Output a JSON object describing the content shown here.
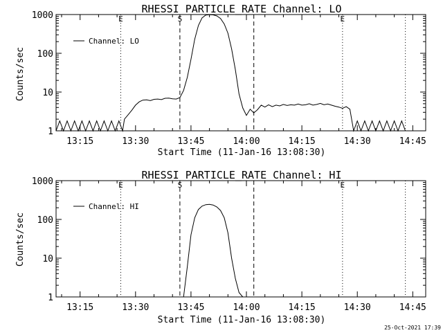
{
  "footer": {
    "timestamp": "25-Oct-2021 17:39"
  },
  "chart_data": [
    {
      "type": "line",
      "title": "RHESSI PARTICLE_RATE Channel: LO",
      "xlabel": "Start Time (11-Jan-16 13:08:30)",
      "ylabel": "Counts/sec",
      "y_scale": "log",
      "ylim": [
        1,
        1000
      ],
      "xlim": [
        "13:08:30",
        "14:48:30"
      ],
      "x_ticks": [
        "13:15",
        "13:30",
        "13:45",
        "14:00",
        "14:15",
        "14:30",
        "14:45"
      ],
      "y_ticks": [
        "1",
        "10",
        "100",
        "1000"
      ],
      "markers": [
        {
          "time": "13:26:00",
          "label": "E",
          "style": "dotted"
        },
        {
          "time": "13:42:00",
          "label": "S",
          "style": "dashed"
        },
        {
          "time": "14:02:00",
          "label": "",
          "style": "dashed"
        },
        {
          "time": "14:26:00",
          "label": "E",
          "style": "dotted"
        },
        {
          "time": "14:43:00",
          "label": "",
          "style": "dotted"
        }
      ],
      "legend": {
        "placement": "top-left"
      },
      "series": [
        {
          "name": "Channel: LO",
          "x": [
            "13:08:30",
            "13:09:30",
            "13:10:30",
            "13:11:30",
            "13:12:30",
            "13:13:30",
            "13:14:30",
            "13:15:30",
            "13:16:30",
            "13:17:30",
            "13:18:30",
            "13:19:30",
            "13:20:30",
            "13:21:30",
            "13:22:30",
            "13:23:30",
            "13:24:30",
            "13:25:30",
            "13:26:30",
            "13:27:00",
            "13:28:00",
            "13:29:00",
            "13:30:00",
            "13:31:00",
            "13:32:00",
            "13:33:00",
            "13:34:00",
            "13:35:00",
            "13:36:00",
            "13:37:00",
            "13:38:00",
            "13:39:00",
            "13:40:00",
            "13:41:00",
            "13:42:00",
            "13:43:00",
            "13:44:00",
            "13:45:00",
            "13:46:00",
            "13:47:00",
            "13:48:00",
            "13:49:00",
            "13:50:00",
            "13:51:00",
            "13:52:00",
            "13:53:00",
            "13:54:00",
            "13:55:00",
            "13:56:00",
            "13:57:00",
            "13:58:00",
            "13:59:00",
            "14:00:00",
            "14:01:00",
            "14:02:00",
            "14:03:00",
            "14:04:00",
            "14:05:00",
            "14:06:00",
            "14:07:00",
            "14:08:00",
            "14:09:00",
            "14:10:00",
            "14:11:00",
            "14:12:00",
            "14:13:00",
            "14:14:00",
            "14:15:00",
            "14:16:00",
            "14:17:00",
            "14:18:00",
            "14:19:00",
            "14:20:00",
            "14:21:00",
            "14:22:00",
            "14:23:00",
            "14:24:00",
            "14:25:00",
            "14:26:00",
            "14:27:00",
            "14:28:00",
            "14:29:00",
            "14:30:00",
            "14:31:00",
            "14:32:00",
            "14:33:00",
            "14:34:00",
            "14:35:00",
            "14:36:00",
            "14:37:00",
            "14:38:00",
            "14:39:00",
            "14:40:00",
            "14:41:00",
            "14:42:00",
            "14:43:00",
            "14:44:00"
          ],
          "y": [
            1,
            1.8,
            1,
            1.8,
            1,
            1.8,
            1,
            1.8,
            1,
            1.8,
            1,
            1.8,
            1,
            1.8,
            1,
            1.8,
            1,
            1.8,
            1,
            2,
            2.6,
            3.4,
            4.6,
            5.6,
            6.2,
            6.3,
            6.0,
            6.5,
            6.6,
            6.4,
            6.9,
            7.0,
            6.7,
            6.6,
            7.2,
            11,
            24,
            70,
            230,
            520,
            820,
            970,
            990,
            980,
            920,
            790,
            570,
            330,
            130,
            38,
            9,
            3.9,
            2.5,
            3.6,
            2.9,
            3.5,
            4.6,
            4.1,
            4.7,
            4.2,
            4.6,
            4.4,
            4.8,
            4.5,
            4.7,
            4.6,
            4.9,
            4.6,
            4.7,
            5.0,
            4.6,
            4.8,
            5.1,
            4.7,
            4.9,
            4.6,
            4.3,
            4.1,
            3.8,
            4.2,
            3.6,
            1.0,
            1.8,
            1.0,
            1.8,
            1.0,
            1.8,
            1.0,
            1.8,
            1.0,
            1.8,
            1.0,
            1.8,
            1.0,
            1.8,
            1.0,
            1.0
          ]
        }
      ]
    },
    {
      "type": "line",
      "title": "RHESSI PARTICLE_RATE Channel: HI",
      "xlabel": "Start Time (11-Jan-16 13:08:30)",
      "ylabel": "Counts/sec",
      "y_scale": "log",
      "ylim": [
        1,
        1000
      ],
      "xlim": [
        "13:08:30",
        "14:48:30"
      ],
      "x_ticks": [
        "13:15",
        "13:30",
        "13:45",
        "14:00",
        "14:15",
        "14:30",
        "14:45"
      ],
      "y_ticks": [
        "1",
        "10",
        "100",
        "1000"
      ],
      "markers": [
        {
          "time": "13:26:00",
          "label": "E",
          "style": "dotted"
        },
        {
          "time": "13:42:00",
          "label": "S",
          "style": "dashed"
        },
        {
          "time": "14:02:00",
          "label": "",
          "style": "dashed"
        },
        {
          "time": "14:26:00",
          "label": "E",
          "style": "dotted"
        },
        {
          "time": "14:43:00",
          "label": "",
          "style": "dotted"
        }
      ],
      "legend": {
        "placement": "top-left"
      },
      "series": [
        {
          "name": "Channel: HI",
          "x": [
            "13:43:00",
            "13:44:00",
            "13:45:00",
            "13:46:00",
            "13:47:00",
            "13:48:00",
            "13:49:00",
            "13:50:00",
            "13:51:00",
            "13:52:00",
            "13:53:00",
            "13:54:00",
            "13:55:00",
            "13:56:00",
            "13:57:00",
            "13:58:00",
            "13:59:00"
          ],
          "y": [
            1,
            6,
            40,
            110,
            180,
            220,
            240,
            245,
            235,
            210,
            170,
            110,
            45,
            10,
            3,
            1.3,
            1
          ]
        }
      ]
    }
  ]
}
